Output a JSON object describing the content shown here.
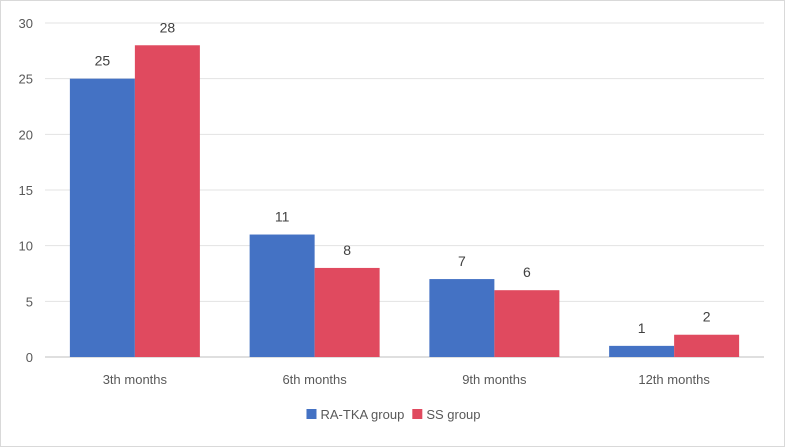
{
  "chart_data": {
    "type": "bar",
    "title": "",
    "xlabel": "",
    "ylabel": "",
    "categories": [
      "3th months",
      "6th months",
      "9th months",
      "12th months"
    ],
    "series": [
      {
        "name": "RA-TKA group",
        "values": [
          25,
          11,
          7,
          1
        ],
        "color": "#4472c4"
      },
      {
        "name": "SS group",
        "values": [
          28,
          8,
          6,
          2
        ],
        "color": "#e04a5f"
      }
    ],
    "ylim": [
      0,
      30
    ],
    "yticks": [
      "0",
      "5",
      "10",
      "15",
      "20",
      "25",
      "30"
    ],
    "grid": true,
    "data_labels": true,
    "legend_position": "bottom"
  }
}
